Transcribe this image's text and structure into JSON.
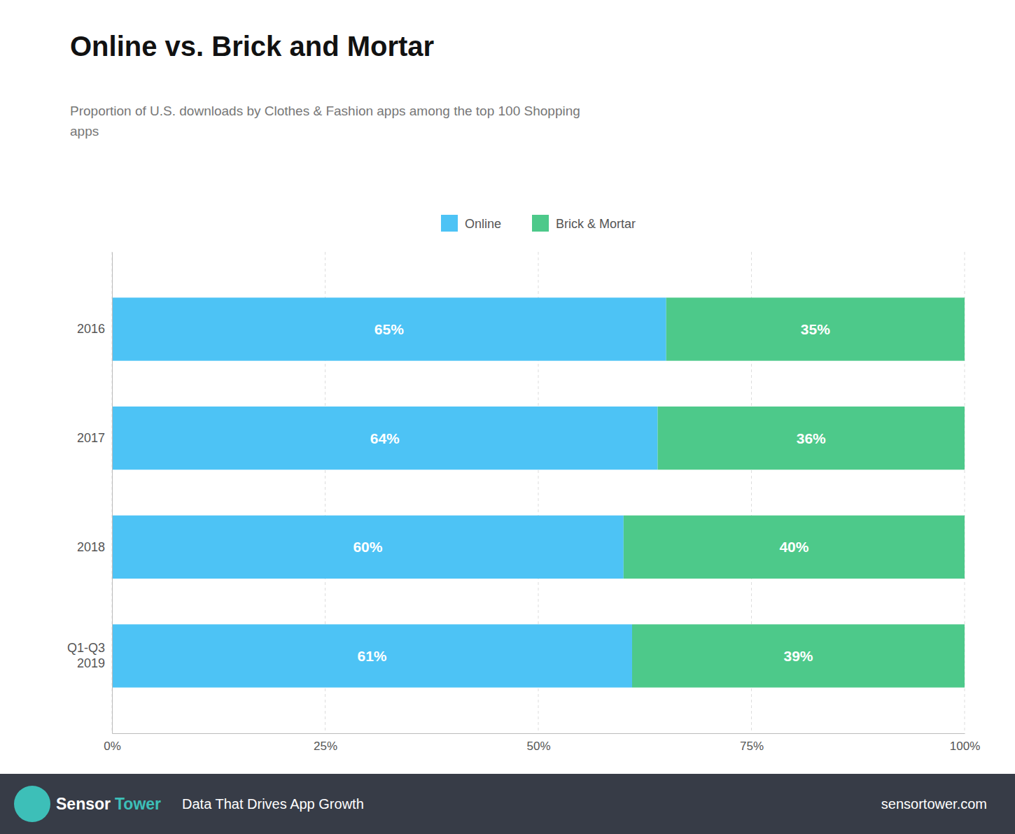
{
  "chart_data": {
    "type": "bar",
    "orientation": "horizontal",
    "stacked": true,
    "title": "Online vs. Brick and Mortar",
    "subtitle": "Proportion of U.S. downloads by Clothes & Fashion apps among the top 100 Shopping\napps",
    "categories": [
      "2016",
      "2017",
      "2018",
      "Q1-Q3\n2019"
    ],
    "series": [
      {
        "name": "Online",
        "color": "#4DC3F5",
        "values": [
          0.65,
          0.64,
          0.6,
          0.61
        ],
        "value_labels": [
          "65%",
          "64%",
          "60%",
          "61%"
        ]
      },
      {
        "name": "Brick & Mortar",
        "color": "#4DC98A",
        "values": [
          0.35,
          0.36,
          0.4,
          0.39
        ],
        "value_labels": [
          "35%",
          "36%",
          "40%",
          "39%"
        ]
      }
    ],
    "xlim": [
      0,
      1.0
    ],
    "xticks": [
      {
        "value": 0,
        "label": "0%"
      },
      {
        "value": 0.25,
        "label": "25%"
      },
      {
        "value": 0.5,
        "label": "50%"
      },
      {
        "value": 0.75,
        "label": "75%"
      },
      {
        "value": 1.0,
        "label": "100%"
      }
    ],
    "grid": true,
    "data_labels": true,
    "legend": "top",
    "annotations": [
      "Sensor",
      "Tower",
      "Data That Drives App Growth",
      "sensortower.com"
    ]
  }
}
